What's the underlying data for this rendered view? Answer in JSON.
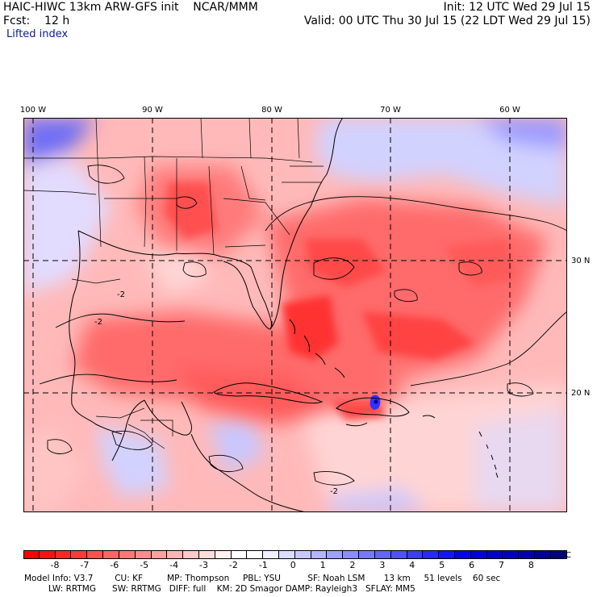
{
  "header": {
    "line1_left": "HAIC-HIWC 13km ARW-GFS init    NCAR/MMM",
    "line1_right": "Init: 12 UTC Wed 29 Jul 15",
    "line2_left": "Fcst:    12 h",
    "line2_right": "Valid: 00 UTC Thu 30 Jul 15 (22 LDT Wed 29 Jul 15)",
    "field": "Lifted index"
  },
  "map": {
    "lon_labels": [
      "100 W",
      "90 W",
      "80 W",
      "70 W",
      "60 W"
    ],
    "lat_labels": [
      "30 N",
      "20 N"
    ],
    "contour_labels": [
      "-2",
      "-2",
      "-2"
    ]
  },
  "colorbar": {
    "ticks": [
      "-8",
      "-7",
      "-6",
      "-5",
      "-4",
      "-3",
      "-2",
      "-1",
      "0",
      "1",
      "2",
      "3",
      "4",
      "5",
      "6",
      "7",
      "8"
    ],
    "unit": "°C",
    "colors": [
      "#ff0000",
      "#ff1010",
      "#ff2525",
      "#ff3a3a",
      "#ff4f4f",
      "#ff6464",
      "#ff7878",
      "#ff8c8c",
      "#ffa0a0",
      "#ffb4b4",
      "#ffc8c8",
      "#ffdcdc",
      "#fff0f0",
      "#ffffff",
      "#ffffff",
      "#f0f0ff",
      "#dcdcff",
      "#c8c8ff",
      "#b4b4ff",
      "#a0a0ff",
      "#8c8cff",
      "#7878ff",
      "#6464ff",
      "#5050ff",
      "#3c3cff",
      "#2828ff",
      "#1414ff",
      "#0505f0",
      "#0000e0",
      "#0000d0",
      "#0000c0",
      "#0000b0",
      "#00009a",
      "#000080"
    ]
  },
  "footer": {
    "line1": "Model Info: V3.7        CU: KF         MP: Thompson     PBL: YSU          SF: Noah LSM       13 km     51 levels    60 sec",
    "line2": "         LW: RRTMG      SW: RRTMG   DIFF: full    KM: 2D Smagor DAMP: Rayleigh3   SFLAY: MM5"
  }
}
